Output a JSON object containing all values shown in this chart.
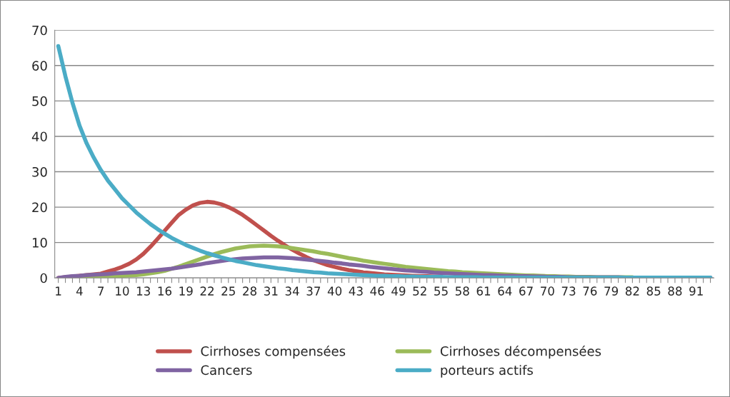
{
  "chart_data": {
    "type": "line",
    "categories": [
      "1",
      null,
      null,
      "4",
      null,
      null,
      "7",
      null,
      null,
      "10",
      null,
      null,
      "13",
      null,
      null,
      "16",
      null,
      null,
      "19",
      null,
      null,
      "22",
      null,
      null,
      "25",
      null,
      null,
      "28",
      null,
      null,
      "31",
      null,
      null,
      "34",
      null,
      null,
      "37",
      null,
      null,
      "40",
      null,
      null,
      "43",
      null,
      null,
      "46",
      null,
      null,
      "49",
      null,
      null,
      "52",
      null,
      null,
      "55",
      null,
      null,
      "58",
      null,
      null,
      "61",
      null,
      null,
      "64",
      null,
      null,
      "67",
      null,
      null,
      "70",
      null,
      null,
      "73",
      null,
      null,
      "76",
      null,
      null,
      "79",
      null,
      null,
      "82",
      null,
      null,
      "85",
      null,
      null,
      "88",
      null,
      null,
      "91",
      null,
      null
    ],
    "series": [
      {
        "name": "Cirrhoses compensées",
        "color": "#c0504d",
        "values": [
          0,
          0.2,
          0.4,
          0.6,
          0.8,
          1,
          1.2,
          1.8,
          2.4,
          3.1,
          4,
          5.2,
          6.8,
          8.8,
          11,
          13.3,
          15.6,
          17.8,
          19.3,
          20.5,
          21.2,
          21.5,
          21.3,
          20.8,
          20,
          19,
          17.8,
          16.4,
          14.9,
          13.4,
          11.9,
          10.5,
          9.2,
          8,
          6.9,
          5.9,
          5,
          4.3,
          3.6,
          3.1,
          2.6,
          2.2,
          1.9,
          1.6,
          1.4,
          1.2,
          1,
          0.9,
          0.8,
          0.7,
          0.6,
          0.5,
          0.5,
          0.4,
          0.4,
          null,
          null,
          null,
          null,
          null,
          null,
          null,
          null,
          null,
          null,
          null,
          null,
          null,
          null,
          null,
          null,
          null,
          null,
          null,
          null,
          null,
          null,
          null,
          null,
          null,
          null,
          null,
          null,
          null,
          null,
          null,
          null,
          null,
          null,
          null,
          null,
          null,
          null
        ]
      },
      {
        "name": "Cirrhoses décompensées",
        "color": "#9bbb59",
        "values": [
          null,
          null,
          0.2,
          0.2,
          0.3,
          0.3,
          0.4,
          0.4,
          0.5,
          0.6,
          0.7,
          0.8,
          1,
          1.3,
          1.6,
          2,
          2.6,
          3.2,
          3.9,
          4.6,
          5.3,
          6,
          6.7,
          7.3,
          7.8,
          8.3,
          8.6,
          8.9,
          9,
          9.1,
          9,
          8.9,
          8.7,
          8.4,
          8.1,
          7.8,
          7.5,
          7.1,
          6.8,
          6.4,
          6,
          5.6,
          5.3,
          4.9,
          4.6,
          4.3,
          4,
          3.7,
          3.4,
          3.1,
          2.9,
          2.7,
          2.5,
          2.3,
          2.1,
          1.9,
          1.8,
          1.6,
          1.5,
          1.4,
          1.3,
          1.2,
          1.1,
          1,
          0.9,
          0.8,
          0.7,
          0.7,
          0.6,
          0.5,
          0.5,
          0.4,
          0.4,
          0.3,
          0.3,
          0.3,
          0.2,
          0.2,
          0.2,
          0.2,
          0.2,
          0.2,
          null,
          null,
          null,
          null,
          null,
          null,
          null,
          null,
          null,
          null,
          null
        ]
      },
      {
        "name": "Cancers",
        "color": "#8064a2",
        "values": [
          0,
          0.3,
          0.5,
          0.6,
          0.8,
          0.9,
          1,
          1.1,
          1.3,
          1.4,
          1.5,
          1.6,
          1.8,
          2,
          2.2,
          2.4,
          2.6,
          2.9,
          3.2,
          3.5,
          3.8,
          4.2,
          4.5,
          4.8,
          5.1,
          5.3,
          5.5,
          5.6,
          5.7,
          5.8,
          5.8,
          5.8,
          5.7,
          5.6,
          5.4,
          5.2,
          5,
          4.8,
          4.6,
          4.3,
          4.1,
          3.8,
          3.6,
          3.4,
          3.1,
          2.9,
          2.7,
          2.5,
          2.3,
          2.1,
          2,
          1.8,
          1.7,
          1.5,
          1.4,
          1.3,
          1.2,
          1.1,
          1,
          0.9,
          0.8,
          0.8,
          0.7,
          0.6,
          0.6,
          0.5,
          0.5,
          0.4,
          0.4,
          0.3,
          0.3,
          0.3,
          0.2,
          0.2,
          0.2,
          0.2,
          0.2,
          0.2,
          0.2,
          0.2,
          0.1,
          0.1,
          0.1,
          0.1,
          0.1,
          0.1,
          0.1,
          0.1,
          0.1,
          0.1,
          0.1,
          0.1,
          0.1
        ]
      },
      {
        "name": "porteurs actifs",
        "color": "#4bacc6",
        "values": [
          65.5,
          57,
          49.5,
          43,
          38,
          34,
          30.5,
          27.5,
          25,
          22.5,
          20.5,
          18.5,
          16.8,
          15.2,
          13.8,
          12.5,
          11.3,
          10.3,
          9.3,
          8.5,
          7.7,
          7,
          6.4,
          5.8,
          5.3,
          4.8,
          4.4,
          4,
          3.6,
          3.3,
          3,
          2.7,
          2.5,
          2.2,
          2,
          1.8,
          1.6,
          1.5,
          1.3,
          1.2,
          1.1,
          1,
          0.9,
          0.8,
          0.7,
          0.6,
          0.6,
          0.5,
          0.5,
          0.4,
          0.4,
          0.3,
          0.3,
          0.3,
          0.3,
          0.2,
          0.2,
          0.2,
          0.2,
          0.2,
          0.1,
          0.1,
          0.1,
          0.1,
          0.1,
          0.1,
          0.1,
          0.1,
          0.1,
          0.1,
          0.1,
          0.1,
          0.1,
          0.1,
          0.1,
          0.1,
          0.1,
          0.1,
          0.1,
          0.1,
          0.1,
          0.1,
          0.1,
          0.1,
          0.1,
          0.1,
          0.1,
          0.1,
          0.1,
          0.1,
          0.1,
          0.1,
          0.1
        ]
      }
    ],
    "ylim": [
      0,
      70
    ],
    "yticks": [
      0,
      10,
      20,
      30,
      40,
      50,
      60,
      70
    ],
    "grid": "y",
    "legend": "bottom"
  }
}
